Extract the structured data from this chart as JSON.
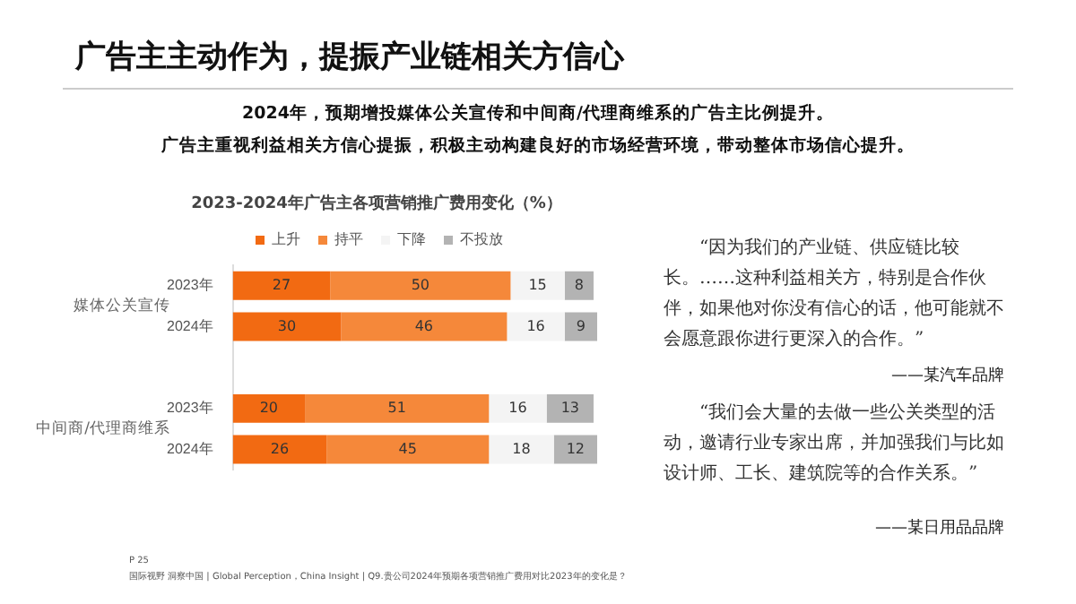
{
  "chart_data": {
    "type": "bar",
    "orientation": "horizontal",
    "stacked": true,
    "title": "广告主主动作为，提振产业链相关方信心",
    "subtitle": "2024年，预期增投媒体公关宣传和中间商/代理商维系的广告主比例提升。",
    "annotations": [
      "2023-2024年广告主各项营销推广费用变化（%）",
      "广告主重视利益相关方信心提振，积极主动构建良好的市场经营环境，带动整体市场信心提升。",
      "媒体公关宣传",
      "中间商/代理商维系",
      "“因为我们的产业链、供应链比较长。……这种利益相关方，特别是合作伙伴，如果他对你没有信心的话，他可能就不会愿意跟你进行更深入的合作。”",
      "——某汽车品牌",
      "“我们会大量的去做一些公关类型的活动，邀请行业专家出席，并加强我们与比如设计师、工长、建筑院等的合作关系。”",
      "——某日用品品牌",
      "P 25",
      "国际视野 洞察中国 | Global Perception，China Insight | Q9.贵公司2024年预期各项营销推广费用对比2023年的变化是？"
    ],
    "categories": [
      "2023年",
      "2024年",
      null,
      "2023年",
      "2024年"
    ],
    "series": [
      {
        "name": "上升",
        "color": "#f26a12",
        "values": [
          27,
          30,
          null,
          20,
          26
        ]
      },
      {
        "name": "持平",
        "color": "#f5883a",
        "values": [
          50,
          46,
          null,
          51,
          45
        ]
      },
      {
        "name": "下降",
        "color": "#f4f4f4",
        "values": [
          15,
          16,
          null,
          16,
          18
        ]
      },
      {
        "name": "不投放",
        "color": "#b3b3b3",
        "values": [
          8,
          9,
          null,
          13,
          12
        ]
      }
    ],
    "xlim": [
      0,
      101
    ],
    "data_labels": true,
    "legend": "top",
    "grid": false,
    "tick_labels": "y"
  }
}
